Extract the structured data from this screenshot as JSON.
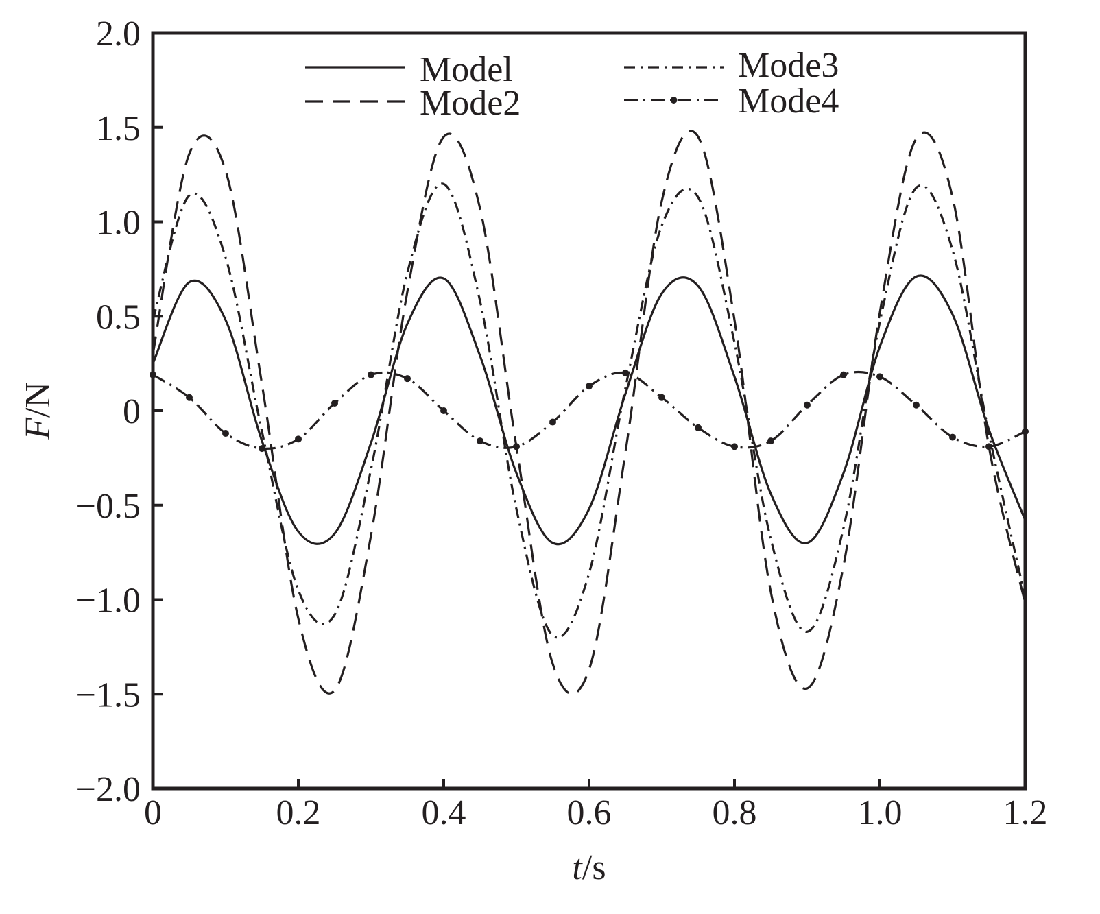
{
  "chart_data": {
    "type": "line",
    "xlabel": {
      "var": "t",
      "unit": "/s"
    },
    "ylabel": {
      "var": "F",
      "unit": "/N"
    },
    "xlim": [
      0,
      1.2
    ],
    "ylim": [
      -2.0,
      2.0
    ],
    "xticks": [
      0,
      0.2,
      0.4,
      0.6,
      0.8,
      1.0,
      1.2
    ],
    "xtick_labels": [
      "0",
      "0.2",
      "0.4",
      "0.6",
      "0.8",
      "1.0",
      "1.2"
    ],
    "yticks": [
      2.0,
      1.5,
      1.0,
      0.5,
      0,
      -0.5,
      -1.0,
      -1.5,
      -2.0
    ],
    "ytick_labels": [
      "2.0",
      "1.5",
      "1.0",
      "0.5",
      "0",
      "−0.5",
      "−1.0",
      "−1.5",
      "−2.0"
    ],
    "grid": false,
    "legend_position": "top",
    "color": "#231f20",
    "series": [
      {
        "name": "Model",
        "style": "solid",
        "x": [
          0,
          0.05,
          0.1,
          0.15,
          0.2,
          0.25,
          0.3,
          0.35,
          0.4,
          0.45,
          0.5,
          0.55,
          0.6,
          0.65,
          0.7,
          0.75,
          0.8,
          0.85,
          0.9,
          0.95,
          1.0,
          1.05,
          1.1,
          1.15,
          1.2
        ],
        "values": [
          0.25,
          0.68,
          0.48,
          -0.16,
          -0.64,
          -0.65,
          -0.17,
          0.46,
          0.7,
          0.29,
          -0.33,
          -0.7,
          -0.52,
          0.09,
          0.62,
          0.66,
          0.18,
          -0.44,
          -0.7,
          -0.33,
          0.34,
          0.71,
          0.51,
          -0.1,
          -0.58
        ]
      },
      {
        "name": "Mode2",
        "style": "dashed",
        "x": [
          0,
          0.05,
          0.1,
          0.15,
          0.2,
          0.25,
          0.3,
          0.35,
          0.4,
          0.45,
          0.5,
          0.55,
          0.6,
          0.65,
          0.7,
          0.75,
          0.8,
          0.85,
          0.9,
          0.95,
          1.0,
          1.05,
          1.1,
          1.15,
          1.2
        ],
        "values": [
          0.3,
          1.36,
          1.27,
          0.14,
          -1.1,
          -1.48,
          -0.66,
          0.63,
          1.45,
          1.07,
          -0.19,
          -1.34,
          -1.37,
          -0.22,
          1.11,
          1.45,
          0.48,
          -0.96,
          -1.47,
          -0.82,
          0.52,
          1.44,
          1.13,
          -0.19,
          -1.02
        ]
      },
      {
        "name": "Mode3",
        "style": "dashdot",
        "x": [
          0,
          0.05,
          0.1,
          0.15,
          0.2,
          0.25,
          0.3,
          0.35,
          0.4,
          0.45,
          0.5,
          0.55,
          0.6,
          0.65,
          0.7,
          0.75,
          0.8,
          0.85,
          0.9,
          0.95,
          1.0,
          1.05,
          1.1,
          1.15,
          1.2
        ],
        "values": [
          0.48,
          1.14,
          0.81,
          -0.11,
          -0.95,
          -1.08,
          -0.31,
          0.73,
          1.2,
          0.58,
          -0.52,
          -1.19,
          -0.86,
          0.12,
          0.98,
          1.13,
          0.36,
          -0.68,
          -1.17,
          -0.62,
          0.47,
          1.18,
          0.85,
          -0.12,
          -0.99
        ]
      },
      {
        "name": "Mode4",
        "style": "dashdot-marker",
        "x": [
          0,
          0.05,
          0.1,
          0.15,
          0.2,
          0.25,
          0.3,
          0.35,
          0.4,
          0.45,
          0.5,
          0.55,
          0.6,
          0.65,
          0.7,
          0.75,
          0.8,
          0.85,
          0.9,
          0.95,
          1.0,
          1.05,
          1.1,
          1.15,
          1.2
        ],
        "values": [
          0.19,
          0.07,
          -0.12,
          -0.2,
          -0.15,
          0.04,
          0.19,
          0.17,
          0.0,
          -0.16,
          -0.19,
          -0.06,
          0.13,
          0.2,
          0.07,
          -0.09,
          -0.19,
          -0.16,
          0.03,
          0.19,
          0.18,
          0.03,
          -0.14,
          -0.19,
          -0.11
        ]
      }
    ],
    "legend": [
      {
        "label": "Model",
        "series": 0
      },
      {
        "label": "Mode3",
        "series": 2
      },
      {
        "label": "Mode2",
        "series": 1
      },
      {
        "label": "Mode4",
        "series": 3
      }
    ]
  }
}
